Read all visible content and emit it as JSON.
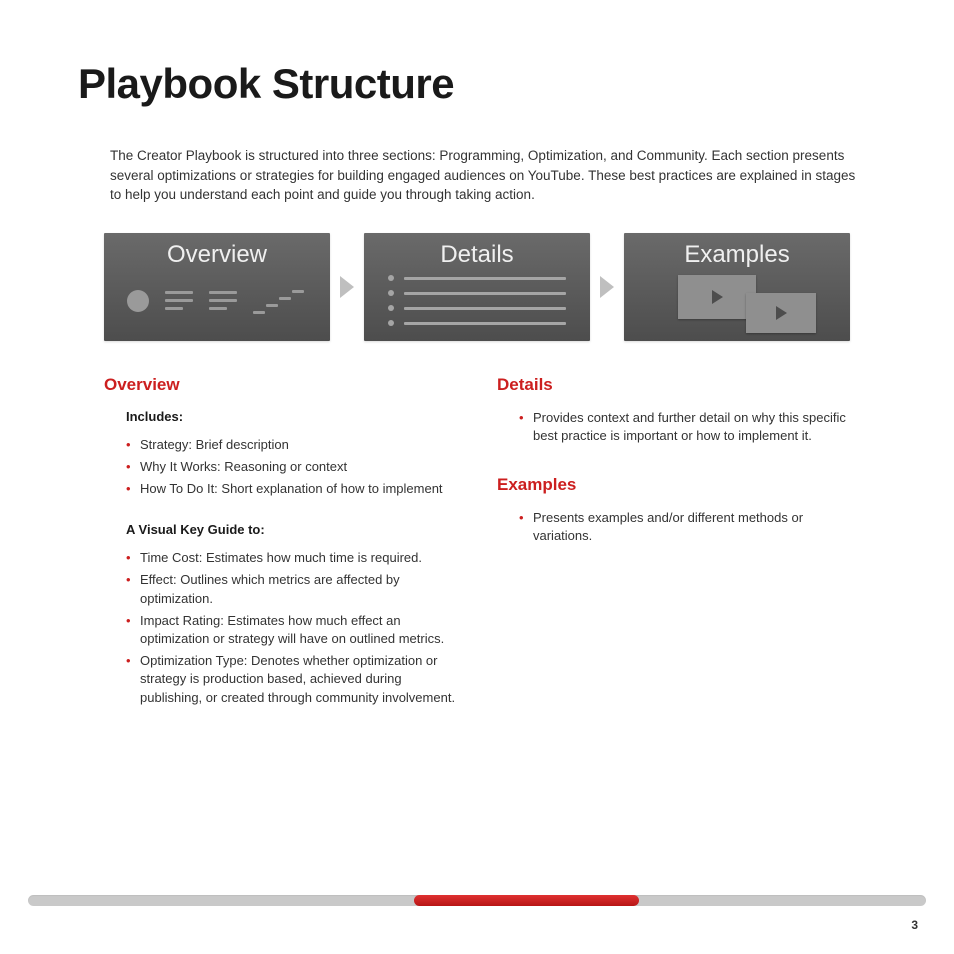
{
  "title": "Playbook Structure",
  "intro": "The Creator Playbook is structured into three sections: Programming, Optimization, and Community. Each section presents several optimizations or strategies for building engaged audiences on YouTube. These best practices are explained in stages to help you understand each point and guide you through taking action.",
  "cards": {
    "overview": "Overview",
    "details": "Details",
    "examples": "Examples"
  },
  "colors": {
    "accent": "#cc1f1f",
    "bullet": "#cc1f1f",
    "card_grad_top": "#6a6a6a",
    "card_grad_bottom": "#4d4d4d",
    "glyph": "#9a9a9a",
    "arrow": "#bfbfbf",
    "bar_bg": "#c9c9c9",
    "bar_fill_top": "#e03131",
    "bar_fill_bottom": "#b71515",
    "text": "#1a1a1a"
  },
  "overview": {
    "heading": "Overview",
    "includes_label": "Includes:",
    "includes": [
      "Strategy: Brief description",
      "Why It Works: Reasoning or context",
      "How To Do It: Short explanation of how to implement"
    ],
    "visual_key_label": "A Visual Key Guide to:",
    "visual_key": [
      "Time Cost: Estimates how much time is required.",
      "Effect: Outlines which metrics are affected by optimization.",
      "Impact Rating: Estimates how much effect an optimization or strategy will have on outlined metrics.",
      "Optimization Type: Denotes whether optimization or strategy is production based, achieved during publishing, or created through community involvement."
    ]
  },
  "details": {
    "heading": "Details",
    "items": [
      "Provides context and further detail on why this specific best practice is important or how to implement it."
    ]
  },
  "examples": {
    "heading": "Examples",
    "items": [
      "Presents examples and/or different methods or variations."
    ]
  },
  "footer": {
    "page_num": "3",
    "fill_left_pct": 43,
    "fill_width_pct": 25
  }
}
